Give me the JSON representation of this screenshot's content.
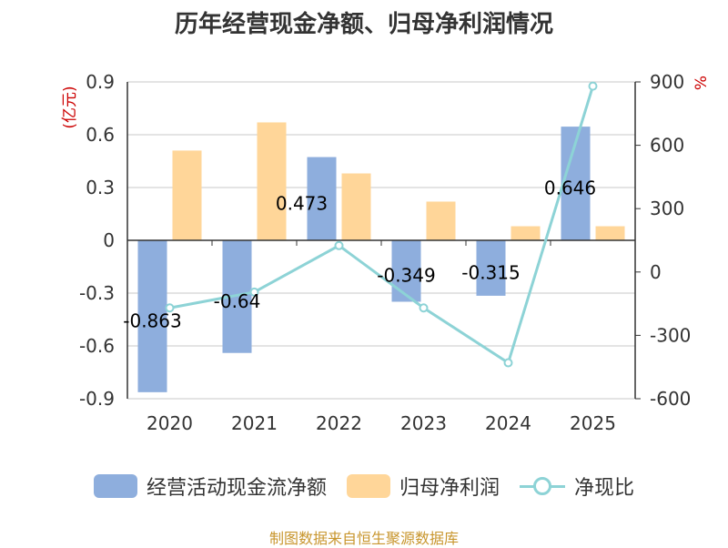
{
  "title": "历年经营现金净额、归母净利润情况",
  "source": "制图数据来自恒生聚源数据库",
  "colors": {
    "cash_flow": "#8eaedd",
    "net_profit": "#ffd699",
    "ratio": "#8dd3d6",
    "unit": "#cc0000",
    "axis": "#333333",
    "grid": "#c8c8c8"
  },
  "chart_data": {
    "type": "bar",
    "title": "历年经营现金净额、归母净利润情况",
    "categories": [
      "2020",
      "2021",
      "2022",
      "2023",
      "2024",
      "2025"
    ],
    "ylabel_left": "(亿元)",
    "ylabel_right": "%",
    "ylim_left": [
      -0.9,
      0.9
    ],
    "ylim_right": [
      -600,
      900
    ],
    "yticks_left": [
      "0.9",
      "0.6",
      "0.3",
      "0",
      "-0.3",
      "-0.6",
      "-0.9"
    ],
    "yticks_right": [
      "900",
      "600",
      "300",
      "0",
      "-300",
      "-600"
    ],
    "series": [
      {
        "name": "经营活动现金流净额",
        "axis": "left",
        "kind": "bar",
        "values": [
          -0.863,
          -0.64,
          0.473,
          -0.349,
          -0.315,
          0.646
        ],
        "labels": [
          "-0.863",
          "-0.64",
          "0.473",
          "-0.349",
          "-0.315",
          "0.646"
        ]
      },
      {
        "name": "归母净利润",
        "axis": "left",
        "kind": "bar",
        "values": [
          0.51,
          0.67,
          0.38,
          0.22,
          0.08,
          0.08
        ]
      },
      {
        "name": "净现比",
        "axis": "right",
        "kind": "line",
        "values": [
          -170,
          -95,
          125,
          -170,
          -430,
          880
        ]
      }
    ],
    "legend": [
      "经营活动现金流净额",
      "归母净利润",
      "净现比"
    ]
  }
}
